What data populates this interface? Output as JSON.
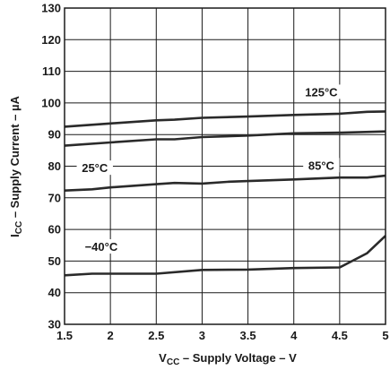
{
  "chart_data": {
    "type": "line",
    "title": "",
    "xlabel": {
      "main": "V",
      "sub": "CC",
      "rest": " – Supply Voltage – V"
    },
    "ylabel": {
      "main": "I",
      "sub": "CC",
      "rest": " – Supply Current – µA"
    },
    "xlim": [
      1.5,
      5
    ],
    "ylim": [
      30,
      130
    ],
    "xticks": [
      "1.5",
      "2",
      "2.5",
      "3",
      "3.5",
      "4",
      "4.5",
      "5"
    ],
    "yticks": [
      "30",
      "40",
      "50",
      "60",
      "70",
      "80",
      "90",
      "100",
      "110",
      "120",
      "130"
    ],
    "grid": true,
    "series": [
      {
        "name": "125°C",
        "x": [
          1.5,
          2,
          2.5,
          2.7,
          3,
          3.5,
          4,
          4.5,
          4.8,
          5
        ],
        "values": [
          92.5,
          93.5,
          94.5,
          94.7,
          95.3,
          95.7,
          96.2,
          96.6,
          97.2,
          97.3
        ]
      },
      {
        "name": "85°C",
        "x": [
          1.5,
          2,
          2.5,
          2.7,
          3,
          3.5,
          4,
          4.5,
          5
        ],
        "values": [
          86.5,
          87.5,
          88.5,
          88.5,
          89.2,
          89.7,
          90.4,
          90.6,
          91.0
        ]
      },
      {
        "name": "25°C",
        "x": [
          1.5,
          1.8,
          2,
          2.5,
          2.7,
          3,
          3.3,
          3.5,
          4,
          4.5,
          4.8,
          5
        ],
        "values": [
          72.3,
          72.7,
          73.3,
          74.3,
          74.7,
          74.5,
          75.1,
          75.3,
          75.8,
          76.4,
          76.4,
          77.0
        ]
      },
      {
        "name": "−40°C",
        "x": [
          1.5,
          1.8,
          2,
          2.5,
          3,
          3.5,
          4,
          4.5,
          4.8,
          5
        ],
        "values": [
          45.5,
          46.0,
          46.0,
          46.0,
          47.2,
          47.3,
          47.8,
          48.0,
          52.5,
          58.0
        ]
      }
    ]
  }
}
